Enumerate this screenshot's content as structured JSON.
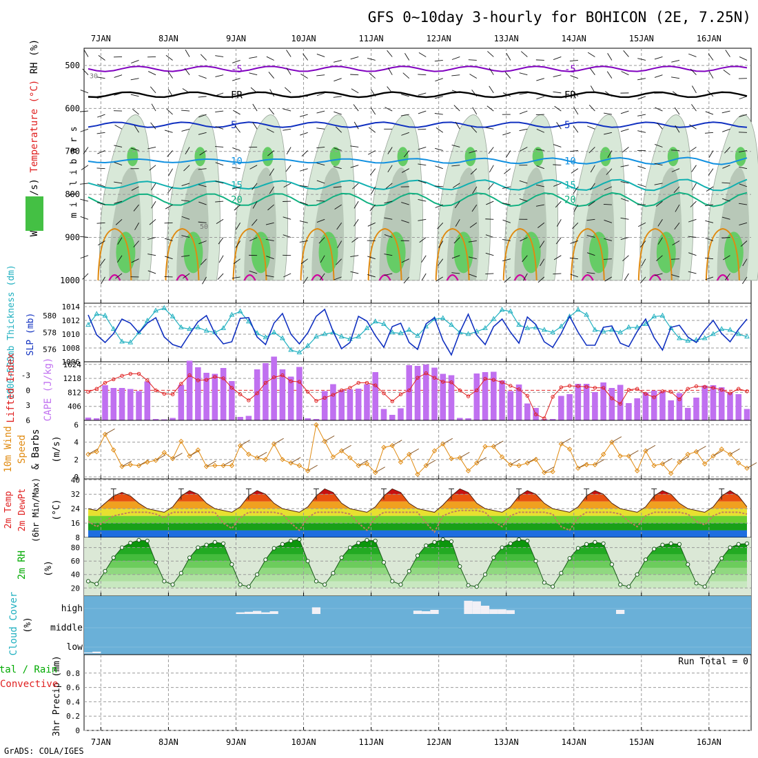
{
  "title": "GFS 0~10day 3-hourly for BOHICON (2E, 7.25N)",
  "credit": "GrADS: COLA/IGES",
  "dates": [
    "7JAN",
    "8JAN",
    "9JAN",
    "10JAN",
    "11JAN",
    "12JAN",
    "13JAN",
    "14JAN",
    "15JAN",
    "16JAN"
  ],
  "colors": {
    "cyan": "#20b0c0",
    "blue": "#1030c0",
    "red": "#e02020",
    "purple": "#c070f0",
    "orange": "#e08a10",
    "green": "#00aa00",
    "sky": "#6ab0d8",
    "magenta": "#d000a0",
    "violet": "#8000c0"
  },
  "chart_data": [
    {
      "type": "contour",
      "panel": "upper-air",
      "ylabel": "m i l l i b a r s",
      "legend": [
        "Wind (m/s)",
        "Temperature (°C)",
        "RH (%)"
      ],
      "yticks": [
        "500",
        "600",
        "700",
        "800",
        "900",
        "1000"
      ],
      "ylim": [
        460,
        1005
      ],
      "isotherms": [
        {
          "label": "-5",
          "level": 508,
          "color": "#8000c0"
        },
        {
          "label": "FR",
          "level": 568,
          "color": "#000000"
        },
        {
          "label": "5",
          "level": 638,
          "color": "#1030c0"
        },
        {
          "label": "10",
          "level": 722,
          "color": "#1090e0"
        },
        {
          "label": "15",
          "level": 778,
          "color": "#10b0b0"
        },
        {
          "label": "20",
          "level": 812,
          "color": "#10b080"
        }
      ],
      "rh_labels": [
        "30",
        "50"
      ]
    },
    {
      "type": "line",
      "panel": "pressure-thickness",
      "left_label": "1000~500mb Thickness (dm)",
      "right_label": "SLP (mb)",
      "left_ticks": [
        "580",
        "578",
        "576"
      ],
      "right_ticks": [
        "1014",
        "1012",
        "1010",
        "1008",
        "1006"
      ],
      "series": [
        {
          "name": "Thickness",
          "color": "#20b0c0",
          "values": [
            578.9,
            580.2,
            580.0,
            578.4,
            576.9,
            576.8,
            578.0,
            579.4,
            580.6,
            580.9,
            579.9,
            578.6,
            578.4,
            578.6,
            578.2,
            578.0,
            578.5,
            580.1,
            580.5,
            579.3,
            577.9,
            577.4,
            578.0,
            577.3,
            575.9,
            575.6,
            576.4,
            577.5,
            577.8,
            578.0,
            577.5,
            577.2,
            577.5,
            578.5,
            579.3,
            579.0,
            578.0,
            577.9,
            578.3,
            577.6,
            578.7,
            579.6,
            579.7,
            578.9,
            578.0,
            577.8,
            578.1,
            578.5,
            579.6,
            580.7,
            580.5,
            578.9,
            578.5,
            578.6,
            578.3,
            578.0,
            578.7,
            579.9,
            580.7,
            580.1,
            578.3,
            578.1,
            578.3,
            578.0,
            578.6,
            578.6,
            579.0,
            579.9,
            580.0,
            578.5,
            577.3,
            577.0,
            577.1,
            577.3,
            577.8,
            578.4,
            578.3,
            577.8,
            577.5
          ]
        },
        {
          "name": "SLP",
          "color": "#1030c0",
          "values": [
            1012.8,
            1009.9,
            1008.8,
            1010.1,
            1012.2,
            1011.6,
            1010.2,
            1011.6,
            1012.4,
            1009.6,
            1008.5,
            1008.1,
            1010.0,
            1011.8,
            1012.7,
            1010.1,
            1008.6,
            1008.9,
            1012.3,
            1012.4,
            1009.6,
            1008.5,
            1011.6,
            1013.0,
            1010.0,
            1008.6,
            1010.2,
            1012.6,
            1013.6,
            1010.4,
            1007.9,
            1008.8,
            1012.6,
            1011.9,
            1009.8,
            1008.1,
            1011.1,
            1011.6,
            1008.8,
            1007.8,
            1011.5,
            1012.4,
            1009.1,
            1007.0,
            1010.3,
            1012.9,
            1009.9,
            1008.5,
            1011.1,
            1012.2,
            1010.3,
            1008.7,
            1012.5,
            1011.4,
            1008.9,
            1008.1,
            1010.1,
            1012.6,
            1010.3,
            1008.4,
            1008.4,
            1011.0,
            1011.2,
            1008.7,
            1008.2,
            1010.4,
            1012.2,
            1009.5,
            1007.7,
            1011.0,
            1011.3,
            1009.6,
            1008.8,
            1010.6,
            1012.0,
            1010.1,
            1008.9,
            1010.7,
            1012.2
          ]
        }
      ]
    },
    {
      "type": "bar+line",
      "panel": "lifted-index-cape",
      "left_label": "Lifted Index",
      "right_label": "CAPE (J/kg)",
      "left_ticks": [
        "-3",
        "0",
        "3",
        "6"
      ],
      "right_ticks": [
        "1624",
        "1218",
        "812",
        "406"
      ],
      "series": [
        {
          "name": "CAPE",
          "color": "#c070f0",
          "values": [
            80,
            60,
            1020,
            940,
            940,
            910,
            850,
            1130,
            40,
            30,
            70,
            1030,
            1730,
            1540,
            1380,
            1350,
            1520,
            1140,
            100,
            130,
            1480,
            1660,
            1850,
            1480,
            1270,
            1550,
            60,
            40,
            850,
            1050,
            880,
            900,
            920,
            1050,
            1400,
            330,
            160,
            350,
            1600,
            1580,
            1620,
            1530,
            1350,
            1310,
            70,
            60,
            1360,
            1400,
            1410,
            1160,
            850,
            1040,
            490,
            360,
            40,
            40,
            710,
            760,
            1060,
            1060,
            820,
            1100,
            940,
            1030,
            500,
            640,
            810,
            860,
            850,
            580,
            790,
            360,
            660,
            1010,
            1020,
            960,
            800,
            760,
            330
          ]
        },
        {
          "name": "Lifted Index",
          "color": "#e02020",
          "values": [
            0.3,
            -0.3,
            -1.5,
            -2.2,
            -2.9,
            -3.3,
            -3.3,
            -2.0,
            0,
            0.7,
            0.8,
            -1.3,
            -3.0,
            -2.0,
            -2.1,
            -2.7,
            -2.4,
            -0.5,
            0.8,
            2.0,
            0.6,
            -1.5,
            -2.6,
            -3.0,
            -1.8,
            -1.7,
            0.3,
            2.1,
            1.5,
            0.9,
            0,
            -0.5,
            -1.5,
            -1.5,
            -1.0,
            0.6,
            2.2,
            0.8,
            0,
            -2.5,
            -3.4,
            -2.5,
            -1.7,
            -1.6,
            0,
            1.2,
            0,
            -2.3,
            -2.1,
            -1.6,
            -0.9,
            -0.2,
            1.1,
            4.8,
            5.6,
            1.3,
            -0.6,
            -0.9,
            -0.8,
            -0.7,
            -0.5,
            -0.5,
            1.6,
            2.7,
            -0.1,
            -0.3,
            0.7,
            1.4,
            0.2,
            0.3,
            1.8,
            -0.3,
            -0.8,
            -0.7,
            -0.5,
            -0.1,
            0.6,
            -0.3,
            0.2
          ]
        }
      ]
    },
    {
      "type": "line",
      "panel": "10m-wind",
      "ylabel": "10m Wind Speed (m/s) & Barbs",
      "yticks": [
        "6",
        "4",
        "2",
        "0"
      ],
      "ylim": [
        0,
        6
      ],
      "series": [
        {
          "name": "Wind Speed",
          "color": "#e08a10",
          "values": [
            2.6,
            2.9,
            4.9,
            3.1,
            1.2,
            1.4,
            1.3,
            1.7,
            1.9,
            2.8,
            2.1,
            4.1,
            2.4,
            3.1,
            1.2,
            1.3,
            1.3,
            1.3,
            3.6,
            2.6,
            2.2,
            2.0,
            3.8,
            2.0,
            1.6,
            1.3,
            0.7,
            6.0,
            4.1,
            2.3,
            3.0,
            2.2,
            1.3,
            1.5,
            0.5,
            3.4,
            3.6,
            1.7,
            2.6,
            0.3,
            1.3,
            3.0,
            3.8,
            2.1,
            2.2,
            0.7,
            1.6,
            3.5,
            3.5,
            2.3,
            1.4,
            1.3,
            1.6,
            2.0,
            0.5,
            0.6,
            3.8,
            3.2,
            1.0,
            1.4,
            1.4,
            2.6,
            4.0,
            2.4,
            2.4,
            0.7,
            3.0,
            1.3,
            1.5,
            0.4,
            1.7,
            2.6,
            2.9,
            1.5,
            2.4,
            3.2,
            2.6,
            1.6,
            1.0
          ]
        }
      ]
    },
    {
      "type": "area",
      "panel": "2m-temp",
      "ylabel": "2m Temp / 2m DewPt / (6hr Min/Max) (°C)",
      "yticks": [
        "40",
        "32",
        "24",
        "16",
        "8"
      ],
      "ylim": [
        8,
        40
      ],
      "series": [
        {
          "name": "2m Temp",
          "values": [
            24,
            23,
            27,
            31,
            33,
            31,
            27,
            24,
            23,
            22,
            25,
            31,
            34,
            32,
            27,
            24,
            23,
            22,
            25,
            31,
            34,
            32,
            27,
            24,
            23,
            22,
            25,
            31,
            35,
            33,
            27,
            24,
            23,
            22,
            25,
            31,
            35,
            33,
            27,
            24,
            23,
            22,
            26,
            31,
            35,
            33,
            27,
            24,
            23,
            22,
            25,
            31,
            34,
            32,
            27,
            24,
            23,
            22,
            25,
            31,
            34,
            32,
            27,
            24,
            23,
            22,
            25,
            31,
            34,
            32,
            27,
            24,
            23,
            22,
            25,
            31,
            34,
            31,
            25
          ]
        },
        {
          "name": "2m DewPt",
          "color": "#c08060",
          "values": [
            17,
            14,
            17,
            20,
            21,
            22,
            22,
            22,
            21,
            19,
            22,
            22,
            22,
            22,
            22,
            22,
            16,
            13,
            19,
            22,
            22,
            22,
            22,
            21,
            16,
            12,
            19,
            22,
            22,
            22,
            22,
            21,
            16,
            12,
            19,
            22,
            22,
            22,
            22,
            22,
            16,
            11,
            20,
            22,
            23,
            23,
            23,
            22,
            17,
            14,
            20,
            22,
            22,
            22,
            22,
            21,
            14,
            12,
            19,
            22,
            22,
            22,
            22,
            21,
            17,
            14,
            20,
            22,
            22,
            22,
            22,
            21,
            17,
            15,
            20,
            22,
            22,
            22,
            21
          ]
        }
      ]
    },
    {
      "type": "area",
      "panel": "2m-rh",
      "ylabel": "2m RH (%)",
      "yticks": [
        "80",
        "60",
        "40",
        "20"
      ],
      "ylim": [
        8,
        95
      ],
      "series": [
        {
          "name": "2m RH",
          "values": [
            30,
            26,
            45,
            65,
            80,
            87,
            91,
            90,
            58,
            30,
            25,
            42,
            65,
            80,
            84,
            88,
            86,
            55,
            25,
            22,
            40,
            62,
            79,
            85,
            90,
            92,
            60,
            30,
            25,
            42,
            65,
            80,
            87,
            91,
            90,
            58,
            30,
            25,
            45,
            68,
            83,
            88,
            92,
            89,
            52,
            24,
            22,
            40,
            65,
            80,
            86,
            92,
            90,
            60,
            28,
            22,
            42,
            64,
            79,
            85,
            88,
            86,
            55,
            25,
            22,
            40,
            62,
            78,
            84,
            86,
            85,
            55,
            27,
            22,
            44,
            64,
            80,
            85,
            86
          ]
        }
      ]
    },
    {
      "type": "bar",
      "panel": "cloud-cover",
      "ylabel": "Cloud Cover (%)",
      "levels": [
        "high",
        "middle",
        "low"
      ],
      "series": [
        {
          "name": "high",
          "values": [
            0,
            0,
            0,
            0,
            0,
            0,
            0,
            0,
            0,
            0,
            0,
            0,
            0,
            0,
            0,
            0,
            0,
            0,
            6,
            8,
            11,
            6,
            10,
            0,
            0,
            0,
            0,
            24,
            0,
            0,
            0,
            0,
            0,
            0,
            0,
            0,
            0,
            0,
            0,
            12,
            10,
            15,
            0,
            0,
            0,
            48,
            46,
            30,
            17,
            17,
            14,
            0,
            0,
            0,
            0,
            0,
            0,
            0,
            0,
            0,
            0,
            0,
            0,
            15,
            0,
            0,
            0,
            0,
            0,
            0,
            0,
            0,
            0,
            0,
            0,
            0,
            0,
            0,
            0
          ]
        },
        {
          "name": "low",
          "values": [
            3,
            6,
            0,
            0,
            0,
            0,
            0,
            0,
            0,
            0,
            0,
            0,
            0,
            0,
            0,
            0,
            0,
            0,
            0,
            0,
            0,
            0,
            0,
            0,
            0,
            0,
            0,
            0,
            0,
            0,
            0,
            0,
            0,
            0,
            0,
            0,
            0,
            0,
            0,
            0,
            0,
            0,
            0,
            0,
            0,
            0,
            0,
            0,
            0,
            0,
            0,
            0,
            0,
            0,
            0,
            0,
            0,
            0,
            0,
            0,
            0,
            0,
            0,
            0,
            0,
            0,
            0,
            0,
            0,
            0,
            0,
            0,
            0,
            0,
            0,
            0,
            0,
            0,
            0
          ]
        }
      ]
    },
    {
      "type": "bar",
      "panel": "precip",
      "ylabel": "3hr Precip (mm)",
      "legend_left": "Total / Rain",
      "legend_left2": "Convective",
      "yticks": [
        "0.8",
        "0.6",
        "0.4",
        "0.2",
        "0"
      ],
      "ylim": [
        0,
        1
      ],
      "annotation": "Run Total = 0",
      "values": []
    }
  ]
}
